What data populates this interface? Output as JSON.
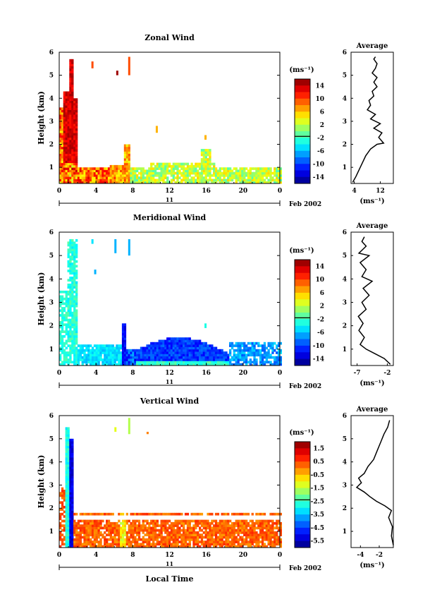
{
  "figure": {
    "xlabel": "Local Time",
    "date_label": "Feb 2002",
    "day_label": "11",
    "colorbar_unit": "(ms⁻¹)",
    "profile_title": "Average",
    "profile_unit": "(ms⁻¹)"
  },
  "chart_data": [
    {
      "type": "heatmap",
      "title": "Zonal Wind",
      "xlabel": "Local Time",
      "ylabel": "Height (km)",
      "xlim": [
        0,
        24
      ],
      "ylim": [
        0.3,
        6
      ],
      "xticks": [
        "0",
        "4",
        "8",
        "12",
        "16",
        "20",
        "0"
      ],
      "yticks": [
        "1",
        "2",
        "3",
        "4",
        "5",
        "6"
      ],
      "colorbar_ticks": [
        "14",
        "10",
        "6",
        "2",
        "-2",
        "-6",
        "-10",
        "-14"
      ],
      "colorbar_range": [
        -16,
        16
      ],
      "profile": {
        "title": "Average",
        "xticks": [
          "4",
          "12"
        ],
        "xlim": [
          3,
          16
        ],
        "points": [
          [
            3.5,
            0.35
          ],
          [
            4.5,
            0.6
          ],
          [
            5.5,
            0.9
          ],
          [
            6.5,
            1.2
          ],
          [
            7.5,
            1.5
          ],
          [
            9,
            1.8
          ],
          [
            11,
            2.0
          ],
          [
            13,
            2.05
          ],
          [
            11.5,
            2.3
          ],
          [
            12.5,
            2.5
          ],
          [
            10,
            2.7
          ],
          [
            12,
            2.9
          ],
          [
            9,
            3.1
          ],
          [
            10.5,
            3.3
          ],
          [
            8,
            3.5
          ],
          [
            9,
            3.7
          ],
          [
            8.5,
            3.9
          ],
          [
            10,
            4.1
          ],
          [
            9.5,
            4.3
          ],
          [
            11,
            4.5
          ],
          [
            10,
            4.7
          ],
          [
            11,
            4.9
          ],
          [
            9.5,
            5.1
          ],
          [
            10.5,
            5.3
          ],
          [
            11,
            5.5
          ],
          [
            10,
            5.7
          ],
          [
            10.5,
            5.8
          ]
        ]
      }
    },
    {
      "type": "heatmap",
      "title": "Meridional Wind",
      "xlabel": "Local Time",
      "ylabel": "Height (km)",
      "xlim": [
        0,
        24
      ],
      "ylim": [
        0.3,
        6
      ],
      "xticks": [
        "0",
        "4",
        "8",
        "12",
        "16",
        "20",
        "0"
      ],
      "yticks": [
        "1",
        "2",
        "3",
        "4",
        "5",
        "6"
      ],
      "colorbar_ticks": [
        "14",
        "10",
        "6",
        "2",
        "-2",
        "-6",
        "-10",
        "-14"
      ],
      "colorbar_range": [
        -16,
        16
      ],
      "profile": {
        "title": "Average",
        "xticks": [
          "-7",
          "-2"
        ],
        "xlim": [
          -8,
          -1
        ],
        "points": [
          [
            -1.5,
            0.35
          ],
          [
            -2.5,
            0.6
          ],
          [
            -4,
            0.8
          ],
          [
            -5.5,
            1.0
          ],
          [
            -6.5,
            1.2
          ],
          [
            -5.8,
            1.5
          ],
          [
            -6.7,
            1.8
          ],
          [
            -6,
            2.1
          ],
          [
            -6.8,
            2.4
          ],
          [
            -5.5,
            2.7
          ],
          [
            -6.2,
            3.0
          ],
          [
            -5,
            3.3
          ],
          [
            -6,
            3.6
          ],
          [
            -4.5,
            3.9
          ],
          [
            -6.2,
            4.1
          ],
          [
            -5.5,
            4.4
          ],
          [
            -6.5,
            4.7
          ],
          [
            -5,
            5.0
          ],
          [
            -6.7,
            5.1
          ],
          [
            -5.5,
            5.4
          ],
          [
            -6.2,
            5.6
          ],
          [
            -5.8,
            5.8
          ]
        ]
      }
    },
    {
      "type": "heatmap",
      "title": "Vertical Wind",
      "xlabel": "Local Time",
      "ylabel": "Height (km)",
      "xlim": [
        0,
        24
      ],
      "ylim": [
        0.3,
        6
      ],
      "xticks": [
        "0",
        "4",
        "8",
        "12",
        "16",
        "20",
        "0"
      ],
      "yticks": [
        "1",
        "2",
        "3",
        "4",
        "5",
        "6"
      ],
      "colorbar_ticks": [
        "1.5",
        "0.5",
        "-0.5",
        "-1.5",
        "-2.5",
        "-3.5",
        "-4.5",
        "-5.5"
      ],
      "colorbar_range": [
        -6,
        2
      ],
      "profile": {
        "title": "Average",
        "xticks": [
          "-4",
          "-2"
        ],
        "xlim": [
          -5,
          -0.5
        ],
        "points": [
          [
            -0.5,
            0.4
          ],
          [
            -0.7,
            0.8
          ],
          [
            -0.6,
            1.2
          ],
          [
            -1.0,
            1.6
          ],
          [
            -0.7,
            1.9
          ],
          [
            -1.4,
            2.1
          ],
          [
            -2.3,
            2.3
          ],
          [
            -3.0,
            2.5
          ],
          [
            -3.6,
            2.7
          ],
          [
            -4.4,
            2.9
          ],
          [
            -3.9,
            3.1
          ],
          [
            -4.2,
            3.3
          ],
          [
            -3.6,
            3.5
          ],
          [
            -3.2,
            3.8
          ],
          [
            -2.6,
            4.1
          ],
          [
            -2.2,
            4.5
          ],
          [
            -1.8,
            4.9
          ],
          [
            -1.5,
            5.2
          ],
          [
            -1.1,
            5.5
          ],
          [
            -0.9,
            5.8
          ]
        ]
      }
    }
  ]
}
